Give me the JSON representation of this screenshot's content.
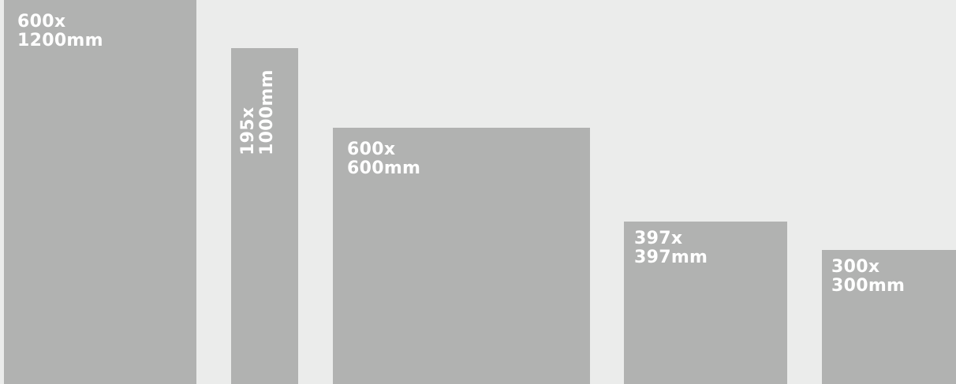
{
  "tiles": [
    {
      "line1": "600x",
      "line2": "1200mm"
    },
    {
      "line1": "195x",
      "line2": "1000mm"
    },
    {
      "line1": "600x",
      "line2": "600mm"
    },
    {
      "line1": "397x",
      "line2": "397mm"
    },
    {
      "line1": "300x",
      "line2": "300mm"
    }
  ],
  "colors": {
    "background": "#ebeceb",
    "tile": "#b1b2b1",
    "text": "#ffffff"
  }
}
